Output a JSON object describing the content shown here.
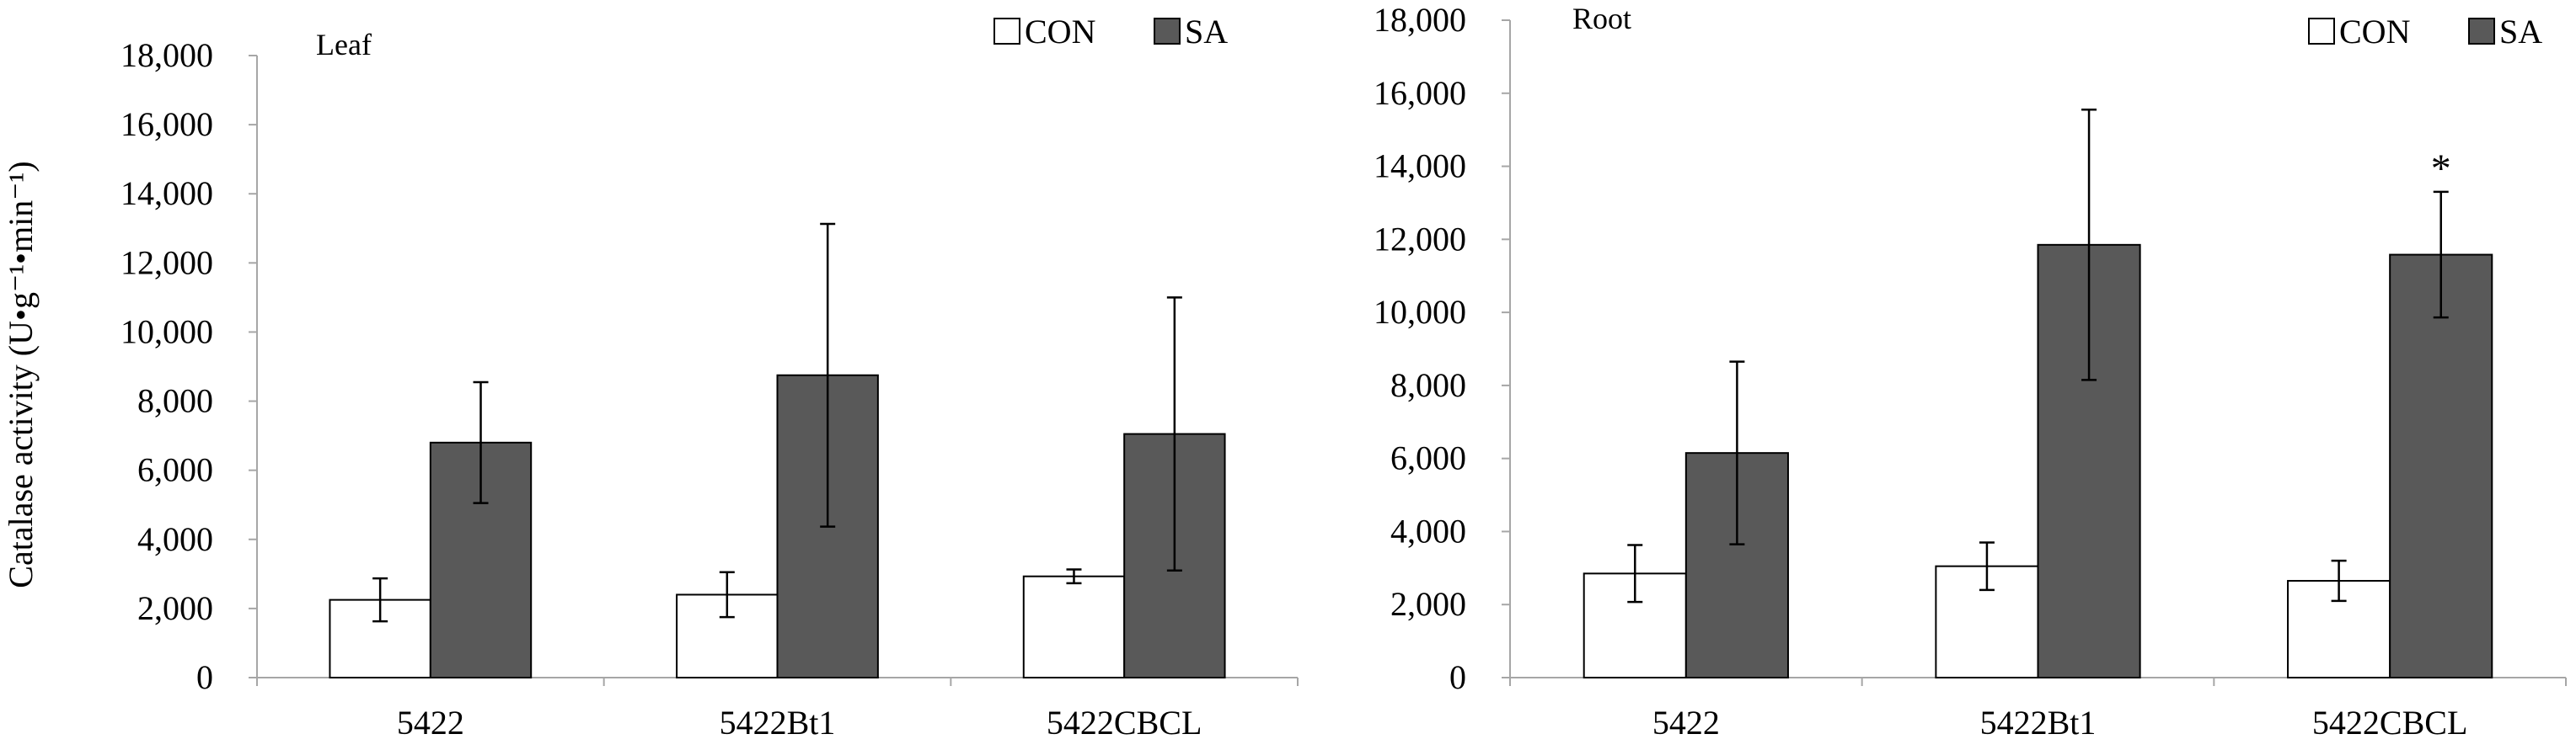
{
  "y_axis_title": "Catalase activity (U•g⁻¹•min⁻¹)",
  "colors": {
    "con": "#ffffff",
    "sa": "#595959",
    "stroke": "#000000",
    "axis": "#a6a6a6"
  },
  "chart_data": [
    {
      "type": "bar",
      "title": "Leaf",
      "categories": [
        "5422",
        "5422Bt1",
        "5422CBCL"
      ],
      "series": [
        {
          "name": "CON",
          "values": [
            2250,
            2400,
            2930
          ],
          "errors": [
            620,
            650,
            200
          ]
        },
        {
          "name": "SA",
          "values": [
            6800,
            8750,
            7050
          ],
          "errors": [
            1750,
            4380,
            3950
          ]
        }
      ],
      "annotations": [],
      "ylim": [
        0,
        18000
      ],
      "yticks": [
        0,
        2000,
        4000,
        6000,
        8000,
        10000,
        12000,
        14000,
        16000,
        18000
      ],
      "ytick_labels": [
        "0",
        "2,000",
        "4,000",
        "6,000",
        "8,000",
        "10,000",
        "12,000",
        "14,000",
        "16,000",
        "18,000"
      ],
      "legend": "top-right"
    },
    {
      "type": "bar",
      "title": "Root",
      "categories": [
        "5422",
        "5422Bt1",
        "5422CBCL"
      ],
      "series": [
        {
          "name": "CON",
          "values": [
            2850,
            3050,
            2650
          ],
          "errors": [
            780,
            650,
            550
          ]
        },
        {
          "name": "SA",
          "values": [
            6150,
            11850,
            11580
          ],
          "errors": [
            2500,
            3700,
            1720
          ]
        }
      ],
      "annotations": [
        {
          "category": "5422CBCL",
          "series": "SA",
          "text": "*"
        }
      ],
      "ylim": [
        0,
        18000
      ],
      "yticks": [
        0,
        2000,
        4000,
        6000,
        8000,
        10000,
        12000,
        14000,
        16000,
        18000
      ],
      "ytick_labels": [
        "0",
        "2,000",
        "4,000",
        "6,000",
        "8,000",
        "10,000",
        "12,000",
        "14,000",
        "16,000",
        "18,000"
      ],
      "legend": "top-right"
    }
  ]
}
